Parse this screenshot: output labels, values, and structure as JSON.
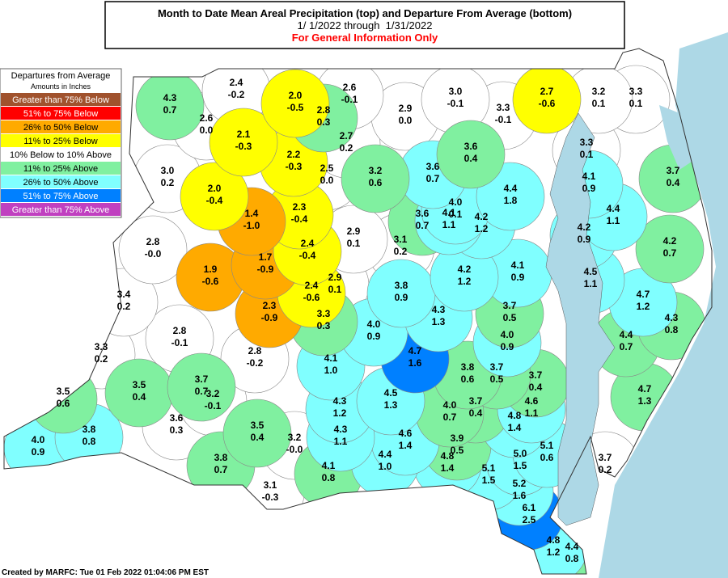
{
  "header": {
    "title": "Month to Date Mean Areal Precipitation (top) and Departure From Average (bottom)",
    "dates": "1/ 1/2022 through  1/31/2022",
    "note": "For General Information Only"
  },
  "legend": {
    "title": "Departures from Average",
    "subtitle": "Amounts in Inches",
    "items": [
      {
        "label": "Greater than 75% Below",
        "color": "#a0522d",
        "text_color": "#ffffff"
      },
      {
        "label": "51% to 75% Below",
        "color": "#ff0000",
        "text_color": "#ffffff"
      },
      {
        "label": "26% to 50% Below",
        "color": "#ffaa00",
        "text_color": "#000000"
      },
      {
        "label": "11% to 25% Below",
        "color": "#ffff00",
        "text_color": "#000000"
      },
      {
        "label": "10% Below to 10% Above",
        "color": "#ffffff",
        "text_color": "#000000"
      },
      {
        "label": "11% to 25% Above",
        "color": "#80f0a0",
        "text_color": "#000000"
      },
      {
        "label": "26% to 50% Above",
        "color": "#80ffff",
        "text_color": "#000000"
      },
      {
        "label": "51% to 75% Above",
        "color": "#0080ff",
        "text_color": "#ffffff"
      },
      {
        "label": "Greater than 75% Above",
        "color": "#c040c0",
        "text_color": "#ffffff"
      }
    ]
  },
  "regions": [
    {
      "precip": "4.3",
      "departure": "0.7",
      "color": "#80f0a0"
    },
    {
      "precip": "2.4",
      "departure": "-0.2",
      "color": "#ffffff"
    },
    {
      "precip": "2.0",
      "departure": "-0.5",
      "color": "#ffff00"
    },
    {
      "precip": "2.6",
      "departure": "-0.1",
      "color": "#ffffff"
    },
    {
      "precip": "2.8",
      "departure": "0.3",
      "color": "#80f0a0"
    },
    {
      "precip": "3.0",
      "departure": "-0.1",
      "color": "#ffffff"
    },
    {
      "precip": "2.7",
      "departure": "-0.6",
      "color": "#ffff00"
    },
    {
      "precip": "3.2",
      "departure": "0.1",
      "color": "#ffffff"
    },
    {
      "precip": "3.3",
      "departure": "0.1",
      "color": "#ffffff"
    },
    {
      "precip": "2.6",
      "departure": "0.0",
      "color": "#ffffff"
    },
    {
      "precip": "2.1",
      "departure": "-0.3",
      "color": "#ffff00"
    },
    {
      "precip": "2.9",
      "departure": "0.0",
      "color": "#ffffff"
    },
    {
      "precip": "3.3",
      "departure": "-0.1",
      "color": "#ffffff"
    },
    {
      "precip": "2.7",
      "departure": "0.2",
      "color": "#ffffff"
    },
    {
      "precip": "2.2",
      "departure": "-0.3",
      "color": "#ffff00"
    },
    {
      "precip": "3.6",
      "departure": "0.4",
      "color": "#80f0a0"
    },
    {
      "precip": "3.3",
      "departure": "0.1",
      "color": "#ffffff"
    },
    {
      "precip": "3.0",
      "departure": "0.2",
      "color": "#ffffff"
    },
    {
      "precip": "2.0",
      "departure": "-0.4",
      "color": "#ffff00"
    },
    {
      "precip": "2.5",
      "departure": "0.0",
      "color": "#ffffff"
    },
    {
      "precip": "3.2",
      "departure": "0.6",
      "color": "#80f0a0"
    },
    {
      "precip": "3.6",
      "departure": "0.7",
      "color": "#80ffff"
    },
    {
      "precip": "3.7",
      "departure": "0.4",
      "color": "#80f0a0"
    },
    {
      "precip": "4.1",
      "departure": "0.9",
      "color": "#80ffff"
    },
    {
      "precip": "4.4",
      "departure": "1.8",
      "color": "#80ffff"
    },
    {
      "precip": "4.0",
      "departure": "0.1",
      "color": "#80ffff"
    },
    {
      "precip": "4.1",
      "departure": "1.1",
      "color": "#80ffff"
    },
    {
      "precip": "1.4",
      "departure": "-1.0",
      "color": "#ffaa00"
    },
    {
      "precip": "2.3",
      "departure": "-0.4",
      "color": "#ffff00"
    },
    {
      "precip": "3.6",
      "departure": "0.7",
      "color": "#80f0a0"
    },
    {
      "precip": "4.4",
      "departure": "1.1",
      "color": "#80ffff"
    },
    {
      "precip": "4.2",
      "departure": "1.2",
      "color": "#80ffff"
    },
    {
      "precip": "2.9",
      "departure": "0.1",
      "color": "#ffffff"
    },
    {
      "precip": "4.2",
      "departure": "0.9",
      "color": "#80ffff"
    },
    {
      "precip": "2.8",
      "departure": "-0.0",
      "color": "#ffffff"
    },
    {
      "precip": "2.4",
      "departure": "-0.4",
      "color": "#ffff00"
    },
    {
      "precip": "3.1",
      "departure": "0.2",
      "color": "#ffffff"
    },
    {
      "precip": "4.2",
      "departure": "0.7",
      "color": "#80f0a0"
    },
    {
      "precip": "1.7",
      "departure": "-0.9",
      "color": "#ffaa00"
    },
    {
      "precip": "1.9",
      "departure": "-0.6",
      "color": "#ffaa00"
    },
    {
      "precip": "4.2",
      "departure": "1.2",
      "color": "#80ffff"
    },
    {
      "precip": "4.1",
      "departure": "0.9",
      "color": "#80ffff"
    },
    {
      "precip": "4.5",
      "departure": "1.1",
      "color": "#80ffff"
    },
    {
      "precip": "2.9",
      "departure": "0.1",
      "color": "#ffffff"
    },
    {
      "precip": "2.4",
      "departure": "-0.6",
      "color": "#ffff00"
    },
    {
      "precip": "3.8",
      "departure": "0.9",
      "color": "#80ffff"
    },
    {
      "precip": "3.4",
      "departure": "0.2",
      "color": "#ffffff"
    },
    {
      "precip": "4.7",
      "departure": "1.2",
      "color": "#80ffff"
    },
    {
      "precip": "3.7",
      "departure": "0.5",
      "color": "#80f0a0"
    },
    {
      "precip": "2.3",
      "departure": "-0.9",
      "color": "#ffaa00"
    },
    {
      "precip": "4.3",
      "departure": "1.3",
      "color": "#80ffff"
    },
    {
      "precip": "3.3",
      "departure": "0.3",
      "color": "#80f0a0"
    },
    {
      "precip": "4.3",
      "departure": "0.8",
      "color": "#80f0a0"
    },
    {
      "precip": "4.0",
      "departure": "0.9",
      "color": "#80ffff"
    },
    {
      "precip": "2.8",
      "departure": "-0.1",
      "color": "#ffffff"
    },
    {
      "precip": "4.4",
      "departure": "0.7",
      "color": "#80f0a0"
    },
    {
      "precip": "4.0",
      "departure": "0.9",
      "color": "#80ffff"
    },
    {
      "precip": "4.7",
      "departure": "1.6",
      "color": "#0080ff"
    },
    {
      "precip": "3.3",
      "departure": "0.2",
      "color": "#ffffff"
    },
    {
      "precip": "2.8",
      "departure": "-0.2",
      "color": "#ffffff"
    },
    {
      "precip": "4.1",
      "departure": "1.0",
      "color": "#80ffff"
    },
    {
      "precip": "3.8",
      "departure": "0.6",
      "color": "#80f0a0"
    },
    {
      "precip": "3.7",
      "departure": "0.5",
      "color": "#80f0a0"
    },
    {
      "precip": "3.7",
      "departure": "0.4",
      "color": "#80f0a0"
    },
    {
      "precip": "4.7",
      "departure": "1.3",
      "color": "#80f0a0"
    },
    {
      "precip": "3.7",
      "departure": "0.7",
      "color": "#80f0a0"
    },
    {
      "precip": "3.5",
      "departure": "0.4",
      "color": "#80f0a0"
    },
    {
      "precip": "3.5",
      "departure": "0.6",
      "color": "#80f0a0"
    },
    {
      "precip": "4.5",
      "departure": "1.3",
      "color": "#80ffff"
    },
    {
      "precip": "3.2",
      "departure": "-0.1",
      "color": "#ffffff"
    },
    {
      "precip": "4.6",
      "departure": "1.1",
      "color": "#80ffff"
    },
    {
      "precip": "4.3",
      "departure": "1.2",
      "color": "#80ffff"
    },
    {
      "precip": "4.0",
      "departure": "0.7",
      "color": "#80f0a0"
    },
    {
      "precip": "3.7",
      "departure": "0.4",
      "color": "#80f0a0"
    },
    {
      "precip": "4.8",
      "departure": "1.4",
      "color": "#80ffff"
    },
    {
      "precip": "3.6",
      "departure": "0.3",
      "color": "#ffffff"
    },
    {
      "precip": "3.5",
      "departure": "0.4",
      "color": "#80f0a0"
    },
    {
      "precip": "3.8",
      "departure": "0.8",
      "color": "#80ffff"
    },
    {
      "precip": "4.3",
      "departure": "1.1",
      "color": "#80ffff"
    },
    {
      "precip": "4.6",
      "departure": "1.4",
      "color": "#80ffff"
    },
    {
      "precip": "5.1",
      "departure": "0.6",
      "color": "#80ffff"
    },
    {
      "precip": "4.0",
      "departure": "0.9",
      "color": "#80ffff"
    },
    {
      "precip": "3.2",
      "departure": "-0.0",
      "color": "#ffffff"
    },
    {
      "precip": "3.9",
      "departure": "0.5",
      "color": "#80f0a0"
    },
    {
      "precip": "5.0",
      "departure": "1.5",
      "color": "#80ffff"
    },
    {
      "precip": "4.4",
      "departure": "1.0",
      "color": "#80ffff"
    },
    {
      "precip": "4.8",
      "departure": "1.4",
      "color": "#80ffff"
    },
    {
      "precip": "3.7",
      "departure": "0.2",
      "color": "#ffffff"
    },
    {
      "precip": "3.8",
      "departure": "0.7",
      "color": "#80f0a0"
    },
    {
      "precip": "4.1",
      "departure": "0.8",
      "color": "#80f0a0"
    },
    {
      "precip": "5.1",
      "departure": "1.5",
      "color": "#80ffff"
    },
    {
      "precip": "5.2",
      "departure": "1.6",
      "color": "#80ffff"
    },
    {
      "precip": "3.1",
      "departure": "-0.3",
      "color": "#ffffff"
    },
    {
      "precip": "6.1",
      "departure": "2.5",
      "color": "#0080ff"
    },
    {
      "precip": "4.8",
      "departure": "1.2",
      "color": "#80ffff"
    },
    {
      "precip": "4.4",
      "departure": "0.8",
      "color": "#80f0a0"
    }
  ],
  "footer": "Created by MARFC: Tue 01 Feb 2022 01:04:06 PM EST"
}
